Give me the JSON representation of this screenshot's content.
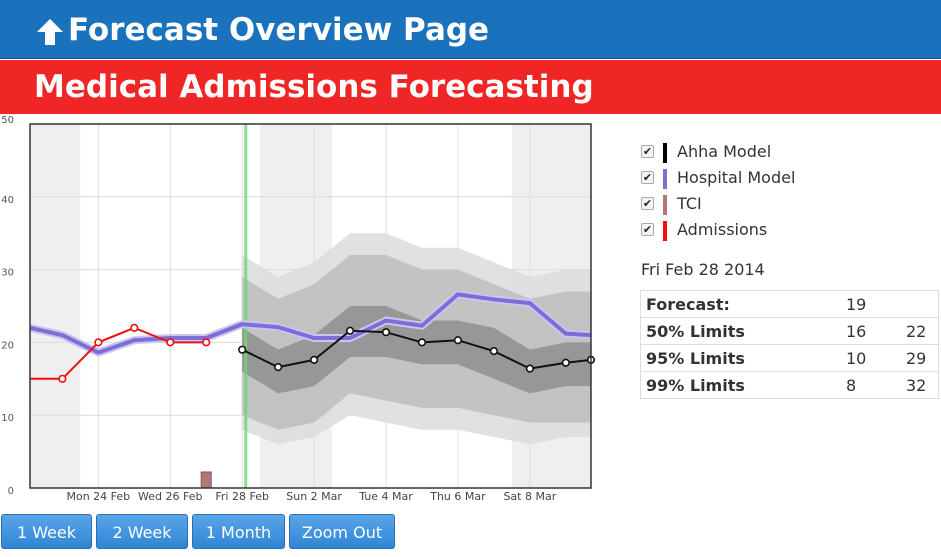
{
  "header": {
    "title": "Forecast Overview Page",
    "icon": "up-arrow-icon"
  },
  "subheader": {
    "title": "Medical Admissions Forecasting"
  },
  "legend": [
    {
      "label": "Ahha Model",
      "color": "#000000",
      "checked": true
    },
    {
      "label": "Hospital Model",
      "color": "#7b6fd6",
      "checked": true
    },
    {
      "label": "TCI",
      "color": "#b07878",
      "checked": true
    },
    {
      "label": "Admissions",
      "color": "#ee1111",
      "checked": true
    }
  ],
  "selected_date": "Fri Feb 28 2014",
  "stats": [
    {
      "label": "Forecast:",
      "v1": "19",
      "v2": ""
    },
    {
      "label": "50% Limits",
      "v1": "16",
      "v2": "22"
    },
    {
      "label": "95% Limits",
      "v1": "10",
      "v2": "29"
    },
    {
      "label": "99% Limits",
      "v1": "8",
      "v2": "32"
    }
  ],
  "buttons": [
    {
      "label": "1 Week"
    },
    {
      "label": "2 Week"
    },
    {
      "label": "1 Month"
    },
    {
      "label": "Zoom Out"
    }
  ],
  "chart_data": {
    "type": "line",
    "ylim": [
      0,
      50
    ],
    "yticks": [
      "0",
      "10",
      "20",
      "30",
      "40",
      "50"
    ],
    "xlim": [
      22.1,
      37.7
    ],
    "xticks": [
      {
        "x": 24,
        "label": "Mon 24 Feb"
      },
      {
        "x": 26,
        "label": "Wed 26 Feb"
      },
      {
        "x": 28,
        "label": "Fri 28 Feb"
      },
      {
        "x": 30,
        "label": "Sun 2 Mar"
      },
      {
        "x": 32,
        "label": "Tue 4 Mar"
      },
      {
        "x": 34,
        "label": "Thu 6 Mar"
      },
      {
        "x": 36,
        "label": "Sat 8 Mar"
      }
    ],
    "weekend_shading": [
      [
        22.1,
        23.5
      ],
      [
        28.5,
        30.5
      ],
      [
        35.5,
        37.7
      ]
    ],
    "current_x": 28.1,
    "series": [
      {
        "name": "Hospital Model",
        "color": "#7b6fd6",
        "x": [
          22.1,
          23.0,
          24.0,
          25.0,
          26.0,
          27.0,
          28.0,
          29.0,
          30.0,
          31.0,
          32.0,
          33.0,
          34.0,
          35.0,
          36.0,
          37.0,
          37.7
        ],
        "y": [
          22.0,
          21.0,
          18.6,
          20.3,
          20.6,
          20.6,
          22.5,
          22.1,
          20.6,
          20.6,
          23.0,
          22.3,
          26.6,
          25.9,
          25.4,
          21.2,
          21.0
        ]
      },
      {
        "name": "Admissions",
        "color": "#ee1111",
        "x": [
          22.1,
          23.0,
          24.0,
          25.0,
          26.0,
          27.0
        ],
        "y": [
          15.0,
          15.0,
          20.0,
          22.0,
          20.0,
          20.0
        ]
      },
      {
        "name": "Ahha Model",
        "color": "#111111",
        "x": [
          28.0,
          29.0,
          30.0,
          31.0,
          32.0,
          33.0,
          34.0,
          35.0,
          36.0,
          37.0,
          37.7
        ],
        "y": [
          19.0,
          16.6,
          17.6,
          21.6,
          21.4,
          20.0,
          20.3,
          18.8,
          16.4,
          17.2,
          17.6
        ]
      },
      {
        "name": "TCI",
        "color": "#b07878",
        "type": "bar",
        "x": [
          27.0
        ],
        "y": [
          2.2
        ]
      }
    ],
    "bands": [
      {
        "level": "99%",
        "color": "#dcdcdc",
        "x": [
          28.0,
          29.0,
          30.0,
          31.0,
          32.0,
          33.0,
          34.0,
          35.0,
          36.0,
          37.0,
          37.7
        ],
        "lo": [
          8,
          6,
          7,
          10,
          9,
          8,
          8,
          7,
          6,
          7,
          7
        ],
        "hi": [
          32,
          29,
          31,
          35,
          35,
          33,
          33,
          31,
          29,
          30,
          30
        ]
      },
      {
        "level": "95%",
        "color": "#bdbdbd",
        "x": [
          28.0,
          29.0,
          30.0,
          31.0,
          32.0,
          33.0,
          34.0,
          35.0,
          36.0,
          37.0,
          37.7
        ],
        "lo": [
          10,
          8,
          9,
          13,
          12,
          11,
          11,
          10,
          9,
          9,
          9
        ],
        "hi": [
          29,
          26,
          28,
          32,
          32,
          30,
          30,
          28,
          26,
          27,
          27
        ]
      },
      {
        "level": "50%",
        "color": "#8f8f8f",
        "x": [
          28.0,
          29.0,
          30.0,
          31.0,
          32.0,
          33.0,
          34.0,
          35.0,
          36.0,
          37.0,
          37.7
        ],
        "lo": [
          16,
          13,
          14,
          18,
          18,
          17,
          17,
          15,
          13,
          14,
          14
        ],
        "hi": [
          22,
          19,
          21,
          25,
          25,
          23,
          23,
          22,
          19,
          20,
          20
        ]
      }
    ]
  }
}
